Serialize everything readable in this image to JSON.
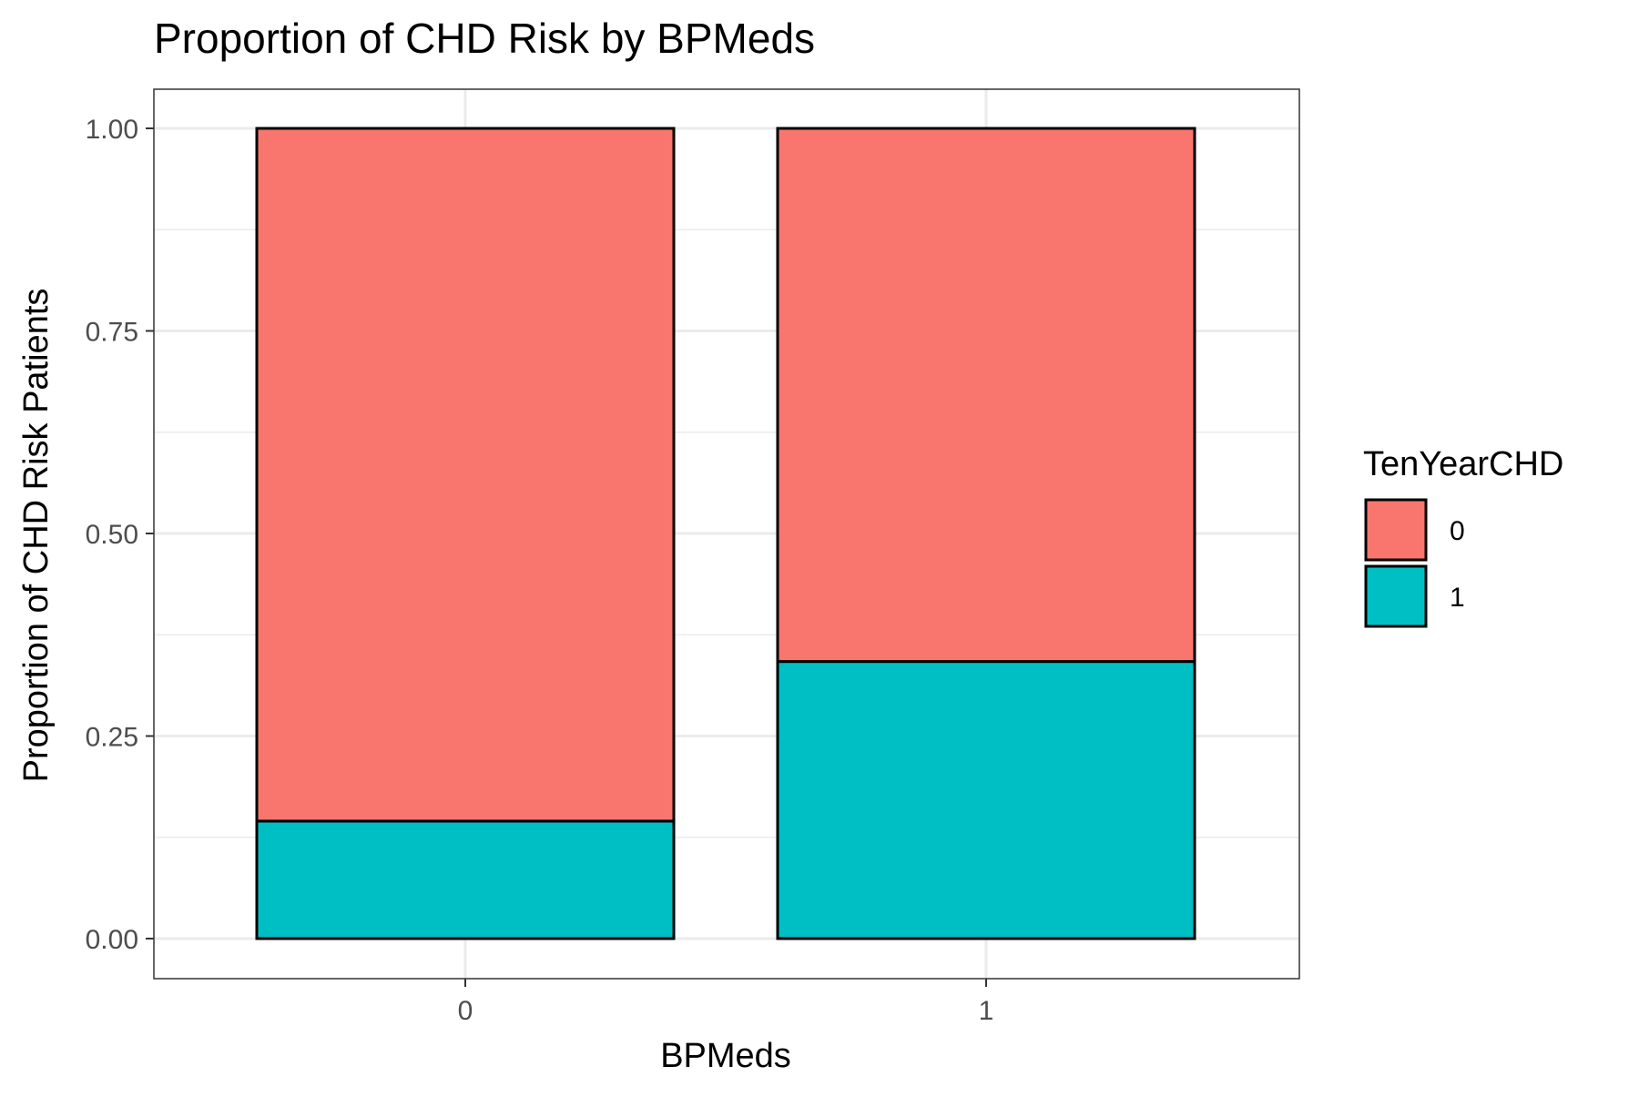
{
  "chart_data": {
    "type": "bar",
    "stacked": true,
    "title": "Proportion of CHD Risk by BPMeds",
    "xlabel": "BPMeds",
    "ylabel": "Proportion of CHD Risk Patients",
    "categories": [
      "0",
      "1"
    ],
    "ylim": [
      0,
      1
    ],
    "yticks": [
      "0.00",
      "0.25",
      "0.50",
      "0.75",
      "1.00"
    ],
    "grid": true,
    "legend": {
      "title": "TenYearCHD",
      "placement": "right"
    },
    "series": [
      {
        "name": "0",
        "values": [
          0.855,
          0.658
        ],
        "color": "#F8766D"
      },
      {
        "name": "1",
        "values": [
          0.145,
          0.342
        ],
        "color": "#00BFC4"
      }
    ]
  }
}
